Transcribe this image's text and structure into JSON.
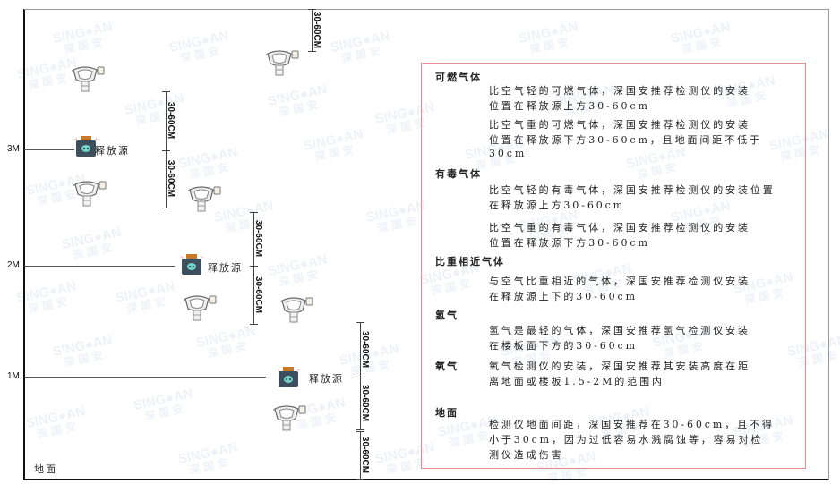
{
  "watermark": {
    "brand": "SINGOAN",
    "cn": "深国安"
  },
  "levels": {
    "m3": "3M",
    "m2": "2M",
    "m1": "1M",
    "ground": "地面"
  },
  "source_label": "释放源",
  "dimension_label": "30-60CM",
  "legend": {
    "sections": [
      {
        "title": "可燃气体",
        "paragraphs": [
          [
            "比空气轻的可燃气体，深国安推荐检测仪的安装",
            "位置在释放源上方30-60cm"
          ],
          [
            "比空气重的可燃气体，深国安推荐检测仪的安装",
            "位置在释放源下方30-60cm，且地面间距不低于",
            "30cm"
          ]
        ]
      },
      {
        "title": "有毒气体",
        "paragraphs": [
          [
            "比空气轻的有毒气体，深国安推荐检测仪的安装位置",
            "在释放源上方30-60cm"
          ],
          [
            "比空气重的有毒气体，深国安推荐检测仪的安装",
            "位置在释放源下方30-60cm"
          ]
        ]
      },
      {
        "title": "比重相近气体",
        "paragraphs": [
          [
            "与空气比重相近的气体，深国安推荐检测仪安装",
            "在释放源上下的30-60cm"
          ]
        ]
      },
      {
        "title": "氢气",
        "paragraphs": [
          [
            "氢气是最轻的气体，深国安推荐氢气检测仪安装",
            "在楼板面下方的30-60cm"
          ]
        ]
      },
      {
        "title": "氧气",
        "paragraphs": [
          [
            "氧气检测仪的安装，深国安推荐其安装高度在距",
            "离地面或楼板1.5-2M的范围内"
          ]
        ]
      },
      {
        "title": "地面",
        "paragraphs": [
          [
            "检测仪地面间距，深国安推荐在30-60cm，且不得",
            "小于30cm，因为过低容易水溅腐蚀等，容易对检",
            "测仪造成伤害"
          ]
        ]
      }
    ]
  },
  "colors": {
    "frame_border": "#e88a8a",
    "source_body": "#3d4f5c",
    "source_cap": "#c9782a",
    "source_face": "#6fd3c8"
  }
}
